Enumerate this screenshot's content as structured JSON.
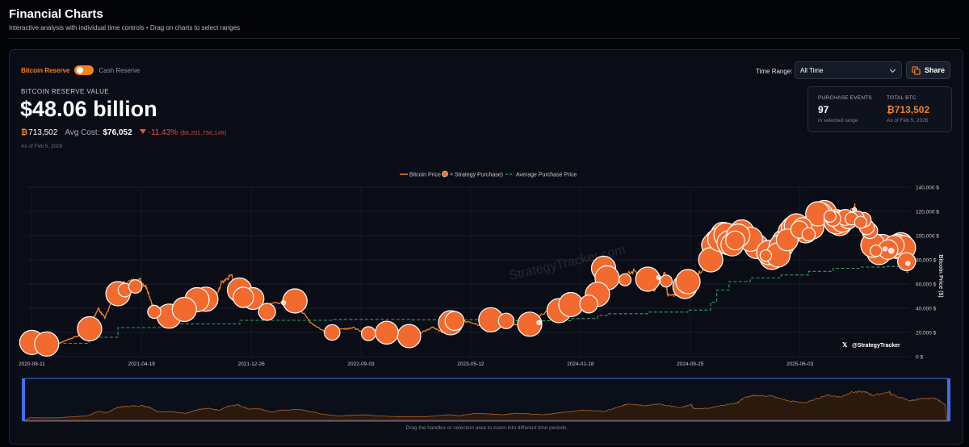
{
  "header": {
    "title": "Financial Charts",
    "subtitle": "Interactive analysis with individual time controls • Drag on charts to select ranges"
  },
  "toggle": {
    "active_label": "Bitcoin Reserve",
    "inactive_label": "Cash Reserve",
    "on": true
  },
  "reserve": {
    "label": "BITCOIN RESERVE VALUE",
    "value": "$48.06 billion",
    "btc_symbol": "₿",
    "btc_amount": "713,502",
    "avg_cost_label": "Avg Cost:",
    "avg_cost_value": "$76,052",
    "change_pct": "-11.43%",
    "change_usd": "($6,201,756,149)",
    "as_of": "As of Feb 5, 2026"
  },
  "controls": {
    "time_range_label": "Time Range:",
    "time_range_value": "All Time",
    "share_label": "Share"
  },
  "stats_box": {
    "purchase_events_label": "PURCHASE EVENTS",
    "purchase_events_value": "97",
    "purchase_events_sub": "in selected range",
    "total_btc_label": "TOTAL BTC",
    "total_btc_value": "₿713,502",
    "total_btc_sub": "As of Feb 5, 2026"
  },
  "watermark": "StrategyTracker.com",
  "social": {
    "handle": "@StrategyTracker",
    "icon": "x-logo-icon"
  },
  "navigator_hint": "Drag the handles or selection area to zoom into different time periods",
  "colors": {
    "accent": "#f7821e",
    "avg_line": "#2f9e6e",
    "negative": "#ef4b4b",
    "navigator_border": "#3f6fe8"
  },
  "chart_data": {
    "type": "line",
    "legend": [
      "Bitcoin Price (",
      "= Strategy Purchase)",
      "Average Purchase Price"
    ],
    "ylabel": "Bitcoin Price ($)",
    "ylim": [
      0,
      140000
    ],
    "y_ticks": [
      0,
      20000,
      40000,
      60000,
      80000,
      100000,
      120000,
      140000
    ],
    "y_tick_labels": [
      "0 $",
      "20,000 $",
      "40,000 $",
      "60,000 $",
      "80,000 $",
      "100,000 $",
      "120,000 $",
      "140,000 $"
    ],
    "x_tick_labels": [
      "2020-08-11",
      "2021-04-19",
      "2021-12-26",
      "2022-09-03",
      "2023-05-12",
      "2024-01-18",
      "2024-09-25",
      "2025-06-03"
    ],
    "xlim": [
      "2020-08-01",
      "2026-02-10"
    ],
    "grid": true,
    "legend_position": "top-center",
    "series": [
      {
        "name": "Bitcoin Price",
        "x": [
          "2020-08-11",
          "2020-09-15",
          "2020-10-15",
          "2020-11-15",
          "2020-12-15",
          "2021-01-10",
          "2021-01-25",
          "2021-02-20",
          "2021-03-13",
          "2021-04-14",
          "2021-05-01",
          "2021-05-19",
          "2021-06-15",
          "2021-07-20",
          "2021-08-15",
          "2021-09-07",
          "2021-10-01",
          "2021-10-20",
          "2021-11-10",
          "2021-12-05",
          "2021-12-26",
          "2022-01-24",
          "2022-02-10",
          "2022-03-28",
          "2022-05-12",
          "2022-06-18",
          "2022-07-15",
          "2022-08-15",
          "2022-09-20",
          "2022-11-09",
          "2022-12-30",
          "2023-02-15",
          "2023-03-10",
          "2023-04-14",
          "2023-06-15",
          "2023-07-14",
          "2023-09-11",
          "2023-10-24",
          "2023-12-08",
          "2024-01-23",
          "2024-02-28",
          "2024-03-14",
          "2024-04-20",
          "2024-05-21",
          "2024-07-05",
          "2024-07-29",
          "2024-08-05",
          "2024-09-06",
          "2024-09-30",
          "2024-11-06",
          "2024-11-22",
          "2024-12-17",
          "2025-01-20",
          "2025-02-28",
          "2025-04-07",
          "2025-05-22",
          "2025-06-22",
          "2025-07-14",
          "2025-08-14",
          "2025-09-01",
          "2025-10-06",
          "2025-10-11",
          "2025-11-21",
          "2025-12-10",
          "2026-01-14",
          "2026-02-05"
        ],
        "values": [
          11600,
          10700,
          11400,
          16000,
          19300,
          40000,
          31500,
          57000,
          61000,
          64000,
          57000,
          37000,
          38500,
          30000,
          47000,
          52000,
          44000,
          62000,
          67500,
          49000,
          51000,
          35000,
          44000,
          47000,
          28000,
          19000,
          22000,
          24000,
          19000,
          16000,
          16500,
          24500,
          20000,
          30500,
          25000,
          31000,
          25000,
          35000,
          44000,
          39500,
          62000,
          72000,
          64500,
          71000,
          54000,
          68500,
          50000,
          53000,
          64000,
          75000,
          98000,
          108000,
          106000,
          84000,
          76500,
          110000,
          101000,
          122000,
          124000,
          108000,
          124500,
          111000,
          85000,
          92000,
          97000,
          70000
        ]
      },
      {
        "name": "Average Purchase Price",
        "x": [
          "2020-08-11",
          "2020-12-20",
          "2021-02-24",
          "2021-06-21",
          "2021-11-30",
          "2022-06-30",
          "2022-12-28",
          "2023-06-27",
          "2023-09-24",
          "2023-12-27",
          "2024-02-26",
          "2024-03-19",
          "2024-06-20",
          "2024-09-20",
          "2024-11-11",
          "2024-11-25",
          "2024-12-23",
          "2025-02-10",
          "2025-04-21",
          "2025-06-23",
          "2025-08-18",
          "2025-10-20",
          "2025-12-15",
          "2026-01-20",
          "2026-02-05"
        ],
        "values": [
          11000,
          16000,
          24000,
          27000,
          30000,
          30700,
          30400,
          29700,
          29600,
          31500,
          34000,
          35500,
          36800,
          38500,
          45000,
          55000,
          62000,
          65000,
          67500,
          70500,
          73000,
          74000,
          74500,
          75800,
          76052
        ]
      }
    ],
    "purchase_events": {
      "x": [
        "2020-08-11",
        "2020-09-14",
        "2020-12-21",
        "2021-02-24",
        "2021-03-12",
        "2021-04-05",
        "2021-05-18",
        "2021-06-21",
        "2021-07-26",
        "2021-08-24",
        "2021-09-13",
        "2021-11-29",
        "2021-12-08",
        "2021-12-30",
        "2022-01-31",
        "2022-04-05",
        "2022-06-29",
        "2022-09-20",
        "2022-11-01",
        "2022-12-22",
        "2023-03-27",
        "2023-04-05",
        "2023-06-27",
        "2023-08-01",
        "2023-09-24",
        "2023-11-30",
        "2023-12-27",
        "2024-02-06",
        "2024-02-26",
        "2024-03-11",
        "2024-03-19",
        "2024-04-29",
        "2024-06-20",
        "2024-08-01",
        "2024-09-13",
        "2024-09-20",
        "2024-11-11",
        "2024-11-18",
        "2024-11-25",
        "2024-12-02",
        "2024-12-09",
        "2024-12-16",
        "2024-12-23",
        "2024-12-30",
        "2025-01-06",
        "2025-01-13",
        "2025-01-21",
        "2025-02-10",
        "2025-02-24",
        "2025-03-17",
        "2025-03-24",
        "2025-03-31",
        "2025-04-14",
        "2025-04-21",
        "2025-04-28",
        "2025-05-05",
        "2025-05-12",
        "2025-05-19",
        "2025-05-26",
        "2025-06-02",
        "2025-06-09",
        "2025-06-16",
        "2025-06-23",
        "2025-06-30",
        "2025-07-14",
        "2025-07-21",
        "2025-07-29",
        "2025-08-11",
        "2025-08-18",
        "2025-08-25",
        "2025-09-02",
        "2025-09-08",
        "2025-09-15",
        "2025-09-22",
        "2025-09-29",
        "2025-10-06",
        "2025-10-13",
        "2025-10-20",
        "2025-10-27",
        "2025-11-03",
        "2025-11-10",
        "2025-11-17",
        "2025-11-24",
        "2025-12-01",
        "2025-12-08",
        "2025-12-15",
        "2025-12-22",
        "2025-12-29",
        "2026-01-05",
        "2026-01-12",
        "2026-01-20",
        "2026-01-26",
        "2026-02-02",
        "2026-02-05",
        "2022-03-10",
        "2023-10-15",
        "2024-07-15"
      ],
      "values": [
        11700,
        10400,
        23000,
        52000,
        55000,
        58000,
        37000,
        33500,
        39000,
        47000,
        47500,
        55000,
        49000,
        48000,
        37000,
        46000,
        20000,
        19000,
        19800,
        17000,
        28000,
        29500,
        30500,
        29500,
        26800,
        38000,
        43000,
        43500,
        51500,
        73000,
        65000,
        63500,
        64000,
        62500,
        58000,
        62000,
        80000,
        92000,
        95000,
        97000,
        101000,
        100500,
        94000,
        92500,
        96000,
        100000,
        103000,
        97000,
        91000,
        83500,
        86000,
        82000,
        84000,
        91000,
        95000,
        96500,
        103000,
        106000,
        108000,
        105000,
        107000,
        104000,
        101000,
        107000,
        118000,
        117000,
        119000,
        116000,
        114000,
        111500,
        110000,
        112000,
        115000,
        113000,
        114000,
        121500,
        115000,
        111000,
        113000,
        107000,
        104000,
        92000,
        87500,
        86000,
        91000,
        89000,
        88500,
        87500,
        92000,
        91000,
        92500,
        90000,
        78500,
        77000,
        44500,
        28000,
        65500
      ],
      "amounts": [
        21454,
        16796,
        29646,
        19452,
        262,
        253,
        229,
        13005,
        3907,
        5050,
        8957,
        7002,
        1434,
        1914,
        660,
        4167,
        480,
        301,
        2395,
        2500,
        6455,
        1045,
        12333,
        467,
        5445,
        16130,
        14620,
        850,
        3000,
        12000,
        9245,
        164,
        11931,
        169,
        18300,
        7420,
        27200,
        51780,
        55500,
        15400,
        21550,
        15350,
        5262,
        2138,
        1070,
        2530,
        11000,
        7633,
        20356,
        130,
        6911,
        22048,
        3459,
        6556,
        15355,
        1895,
        13390,
        7390,
        4020,
        705,
        1045,
        10100,
        245,
        4980,
        4225,
        6220,
        21021,
        155,
        430,
        3081,
        4048,
        1955,
        525,
        850,
        196,
        0,
        220,
        168,
        390,
        397,
        487,
        8178,
        130,
        10624,
        10645,
        0,
        1229,
        3,
        1283,
        13627,
        22305,
        2932,
        855,
        0,
        0,
        0,
        0
      ]
    }
  }
}
